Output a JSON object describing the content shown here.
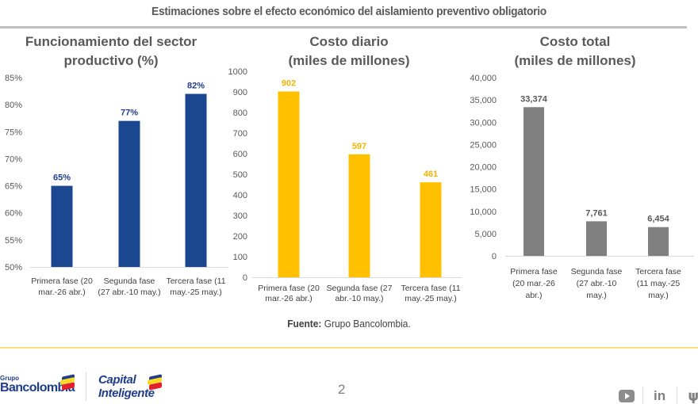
{
  "page": {
    "title": "Estimaciones sobre el efecto económico del aislamiento preventivo obligatorio",
    "source_label": "Fuente:",
    "source_text": " Grupo Bancolombia.",
    "page_number": "2",
    "logos": {
      "bancolombia_small": "Grupo",
      "bancolombia_big": "Bancolombia",
      "capital_line1": "Capital",
      "capital_line2": "Inteligente"
    },
    "social": {
      "youtube": "youtube-icon",
      "linkedin": "in",
      "twitter": "🐦"
    }
  },
  "chart_data": [
    {
      "type": "bar",
      "title": [
        "Funcionamiento del sector",
        "productivo (%)"
      ],
      "categories": [
        [
          "Primera fase (20",
          "mar.-26 abr.)"
        ],
        [
          "Segunda fase",
          "(27 abr.-10 may.)"
        ],
        [
          "Tercera fase (11",
          "may.-25 may.)"
        ]
      ],
      "values": [
        65,
        77,
        82
      ],
      "labels": [
        "65%",
        "77%",
        "82%"
      ],
      "yticks": [
        50,
        55,
        60,
        65,
        70,
        75,
        80,
        85
      ],
      "ytick_labels": [
        "50%",
        "55%",
        "60%",
        "65%",
        "70%",
        "75%",
        "80%",
        "85%"
      ],
      "ylim": [
        50,
        85
      ],
      "xlabel": "",
      "ylabel": "",
      "color": "#1b4690",
      "label_color": "#1f3d8a",
      "grid": false
    },
    {
      "type": "bar",
      "title": [
        "Costo diario",
        "(miles de millones)"
      ],
      "categories": [
        [
          "Primera fase (20",
          "mar.-26 abr.)"
        ],
        [
          "Segunda fase  (27",
          "abr.-10 may.)"
        ],
        [
          "Tercera fase (11",
          "may.-25 may.)"
        ]
      ],
      "values": [
        902,
        597,
        461
      ],
      "labels": [
        "902",
        "597",
        "461"
      ],
      "yticks": [
        0,
        100,
        200,
        300,
        400,
        500,
        600,
        700,
        800,
        900,
        1000
      ],
      "ytick_labels": [
        "0",
        "100",
        "200",
        "300",
        "400",
        "500",
        "600",
        "700",
        "800",
        "900",
        "1000"
      ],
      "ylim": [
        0,
        1000
      ],
      "xlabel": "",
      "ylabel": "",
      "color": "#ffc000",
      "label_color": "#f2b400",
      "grid": false
    },
    {
      "type": "bar",
      "title": [
        "Costo total",
        "(miles de millones)"
      ],
      "categories": [
        [
          "Primera fase",
          "(20 mar.-26",
          "abr.)"
        ],
        [
          "Segunda fase",
          "(27 abr.-10",
          "may.)"
        ],
        [
          "Tercera fase",
          "(11 may.-25",
          "may.)"
        ]
      ],
      "values": [
        33374,
        7761,
        6454
      ],
      "labels": [
        "33,374",
        "7,761",
        "6,454"
      ],
      "yticks": [
        0,
        5000,
        10000,
        15000,
        20000,
        25000,
        30000,
        35000,
        40000
      ],
      "ytick_labels": [
        "0",
        "5,000",
        "10,000",
        "15,000",
        "20,000",
        "25,000",
        "30,000",
        "35,000",
        "40,000"
      ],
      "ylim": [
        0,
        40000
      ],
      "xlabel": "",
      "ylabel": "",
      "color": "#808080",
      "label_color": "#595959",
      "grid": false
    }
  ]
}
